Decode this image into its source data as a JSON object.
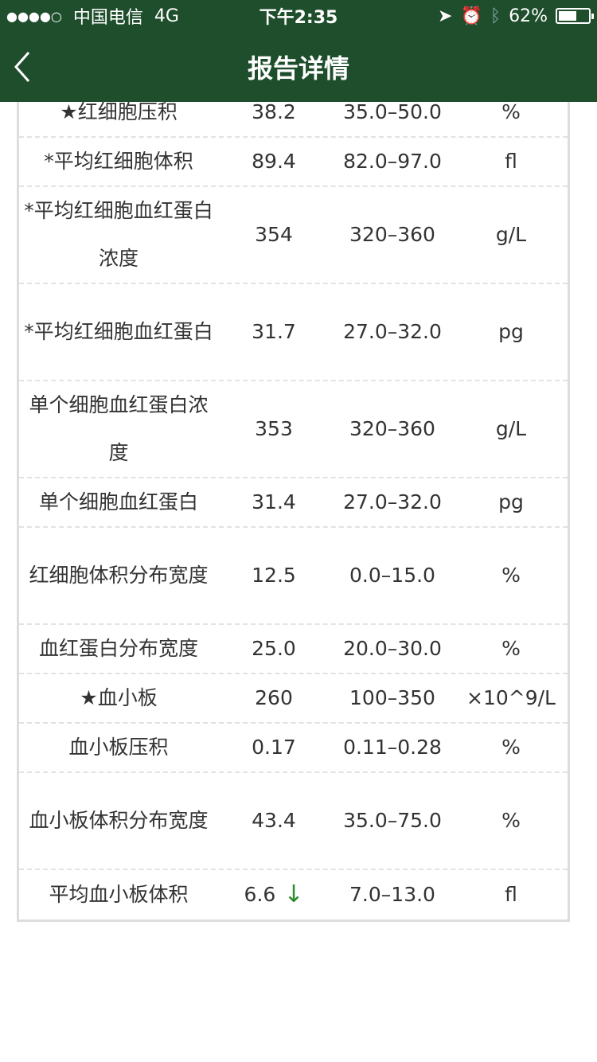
{
  "status_bar": {
    "signal": "●●●●○",
    "carrier": "中国电信",
    "network": "4G",
    "time": "下午2:35",
    "battery": "62%",
    "battery_level": 0.62
  },
  "header": {
    "title": "报告详情"
  },
  "rows": [
    {
      "name": "★红细胞压积",
      "value": "38.2",
      "range": "35.0–50.0",
      "unit": "%",
      "flag": ""
    },
    {
      "name": "*平均红细胞体积",
      "value": "89.4",
      "range": "82.0–97.0",
      "unit": "fl",
      "flag": ""
    },
    {
      "name": "*平均红细胞血红蛋白浓度",
      "value": "354",
      "range": "320–360",
      "unit": "g/L",
      "flag": ""
    },
    {
      "name": "*平均红细胞血红蛋白",
      "value": "31.7",
      "range": "27.0–32.0",
      "unit": "pg",
      "flag": ""
    },
    {
      "name": "单个细胞血红蛋白浓度",
      "value": "353",
      "range": "320–360",
      "unit": "g/L",
      "flag": ""
    },
    {
      "name": "单个细胞血红蛋白",
      "value": "31.4",
      "range": "27.0–32.0",
      "unit": "pg",
      "flag": ""
    },
    {
      "name": "红细胞体积分布宽度",
      "value": "12.5",
      "range": "0.0–15.0",
      "unit": "%",
      "flag": ""
    },
    {
      "name": "血红蛋白分布宽度",
      "value": "25.0",
      "range": "20.0–30.0",
      "unit": "%",
      "flag": ""
    },
    {
      "name": "★血小板",
      "value": "260",
      "range": "100–350",
      "unit": "×10^9/L",
      "flag": ""
    },
    {
      "name": "血小板压积",
      "value": "0.17",
      "range": "0.11–0.28",
      "unit": "%",
      "flag": ""
    },
    {
      "name": "血小板体积分布宽度",
      "value": "43.4",
      "range": "35.0–75.0",
      "unit": "%",
      "flag": ""
    },
    {
      "name": "平均血小板体积",
      "value": "6.6",
      "range": "7.0–13.0",
      "unit": "fl",
      "flag": "↓"
    }
  ],
  "colors": {
    "header": "#1f4e2c",
    "low_flag": "#2e8b2e"
  }
}
